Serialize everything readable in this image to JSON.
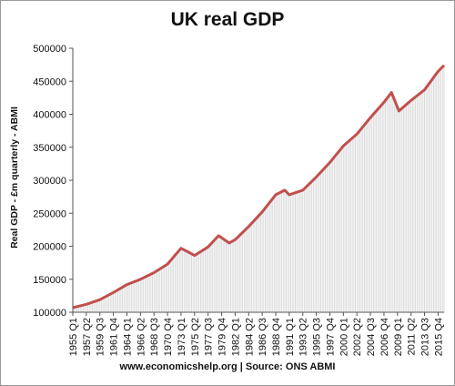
{
  "chart_data": {
    "type": "area",
    "title": "UK real GDP",
    "ylabel": "Real GDP - £m quarterly - ABMI",
    "xlabel": "",
    "source": "www.economicshelp.org | Source: ONS ABMI",
    "ylim": [
      100000,
      500000
    ],
    "y_ticks": [
      100000,
      150000,
      200000,
      250000,
      300000,
      350000,
      400000,
      450000,
      500000
    ],
    "x_ticks": [
      "1955 Q1",
      "1957 Q2",
      "1959 Q3",
      "1961 Q4",
      "1964 Q1",
      "1966 Q2",
      "1968 Q3",
      "1970 Q4",
      "1973 Q1",
      "1975 Q2",
      "1977 Q3",
      "1979 Q4",
      "1982 Q1",
      "1984 Q2",
      "1986 Q3",
      "1988 Q4",
      "1991 Q1",
      "1993 Q2",
      "1995 Q3",
      "1997 Q4",
      "2000 Q1",
      "2002 Q2",
      "2004 Q3",
      "2006 Q4",
      "2009 Q1",
      "2011 Q2",
      "2013 Q3",
      "2015 Q4"
    ],
    "grid": false,
    "line_color": "#c0504d",
    "fill_color": "#d9d9d9",
    "series": [
      {
        "x": [
          "1955 Q1",
          "1957 Q2",
          "1959 Q3",
          "1961 Q4",
          "1964 Q1",
          "1966 Q2",
          "1968 Q3",
          "1970 Q4",
          "1973 Q1",
          "1974 Q2",
          "1975 Q2",
          "1977 Q3",
          "1979 Q2",
          "1979 Q4",
          "1981 Q1",
          "1982 Q1",
          "1984 Q2",
          "1986 Q3",
          "1988 Q4",
          "1990 Q2",
          "1991 Q1",
          "1993 Q2",
          "1995 Q3",
          "1997 Q4",
          "2000 Q1",
          "2002 Q2",
          "2004 Q3",
          "2006 Q4",
          "2008 Q1",
          "2009 Q2",
          "2011 Q2",
          "2013 Q3",
          "2015 Q4",
          "2016 Q4"
        ],
        "values": [
          107000,
          112000,
          119000,
          130000,
          142000,
          150000,
          160000,
          173000,
          197000,
          191000,
          186000,
          199000,
          216000,
          213000,
          205000,
          210000,
          230000,
          252000,
          278000,
          285000,
          278000,
          285000,
          305000,
          327000,
          352000,
          370000,
          395000,
          418000,
          433000,
          405000,
          421000,
          437000,
          465000,
          474000
        ]
      }
    ]
  }
}
